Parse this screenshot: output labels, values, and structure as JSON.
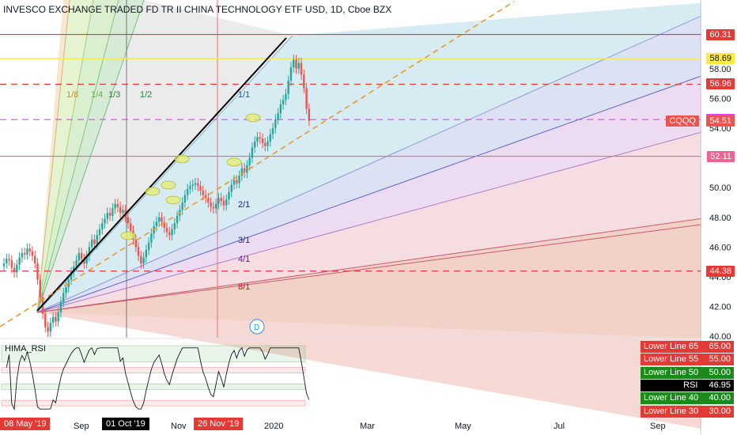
{
  "title": "INVESCO EXCHANGE TRADED FD TR II CHINA TECHNOLOGY ETF USD, 1D, Cboe BZX",
  "colors": {
    "up": "#26a69a",
    "down": "#ef5350",
    "hline": "#e53935",
    "yellow": "#ffeb3b",
    "magenta": "#e040fb",
    "pink": "#f06292",
    "trend": "#000000",
    "dashed_trend": "#e69a2e"
  },
  "chart_data": {
    "type": "candlestick",
    "title": "INVESCO EXCHANGE TRADED FD TR II CHINA TECHNOLOGY ETF USD, 1D, Cboe BZX",
    "symbol": "CQQQ",
    "last_price": 54.51,
    "y_range": [
      39.0,
      61.0
    ],
    "y_ticks": [
      40.0,
      42.0,
      44.0,
      46.0,
      48.0,
      50.0,
      52.0,
      54.0,
      56.0,
      58.0
    ],
    "x_ticks": [
      "Sep",
      "Nov",
      "2020",
      "Mar",
      "May",
      "Jul",
      "Sep"
    ],
    "highlight_dates": [
      "08 May '19",
      "01 Oct '19",
      "26 Nov '19"
    ],
    "price_tags": [
      {
        "value": "60.31",
        "style": "red"
      },
      {
        "value": "58.69",
        "style": "yellow"
      },
      {
        "value": "56.96",
        "style": "red"
      },
      {
        "value": "54.58",
        "style": "magenta"
      },
      {
        "value": "54.51",
        "style": "last",
        "symbol": "CQQQ"
      },
      {
        "value": "52.11",
        "style": "pink"
      },
      {
        "value": "44.38",
        "style": "red"
      }
    ],
    "horizontal_levels": [
      {
        "price": 60.31,
        "style": "solid-red"
      },
      {
        "price": 58.69,
        "style": "solid-yellow"
      },
      {
        "price": 56.96,
        "style": "dashed-red"
      },
      {
        "price": 54.58,
        "style": "dashed-magenta"
      },
      {
        "price": 52.11,
        "style": "solid-pink"
      },
      {
        "price": 44.38,
        "style": "dashed-red"
      }
    ],
    "gann_fan_labels": [
      "1/8",
      "1/4",
      "1/3",
      "1/2",
      "1/1",
      "2/1",
      "3/1",
      "4/1",
      "8/1"
    ],
    "closes": [
      44.9,
      45.2,
      45.1,
      44.6,
      44.3,
      44.8,
      45.3,
      45.6,
      45.5,
      45.9,
      45.7,
      45.4,
      44.9,
      43.8,
      42.6,
      41.5,
      40.6,
      40.3,
      40.9,
      41.3,
      41.0,
      41.6,
      42.3,
      42.9,
      43.3,
      43.8,
      44.3,
      44.7,
      45.1,
      45.6,
      45.2,
      44.9,
      45.4,
      46.0,
      46.5,
      46.2,
      46.8,
      47.2,
      47.6,
      47.9,
      48.3,
      48.1,
      48.6,
      48.9,
      48.7,
      48.3,
      48.5,
      48.0,
      47.6,
      47.1,
      46.5,
      46.0,
      45.4,
      44.9,
      45.3,
      45.8,
      46.3,
      46.9,
      47.4,
      47.7,
      48.0,
      47.7,
      47.3,
      47.0,
      46.8,
      47.2,
      47.6,
      48.1,
      48.5,
      49.0,
      49.5,
      49.9,
      50.1,
      50.2,
      50.3,
      50.1,
      49.8,
      49.5,
      49.3,
      49.0,
      48.7,
      48.6,
      48.9,
      49.3,
      49.1,
      48.8,
      49.2,
      49.7,
      50.2,
      50.5,
      50.3,
      50.8,
      51.3,
      51.0,
      51.5,
      52.0,
      52.7,
      53.1,
      53.4,
      53.3,
      53.0,
      52.8,
      53.1,
      53.6,
      54.0,
      54.6,
      55.0,
      55.6,
      55.9,
      56.3,
      57.2,
      58.1,
      58.6,
      58.0,
      58.4,
      57.6,
      56.7,
      55.3,
      54.5
    ],
    "rsi": {
      "title": "HIMA_RSI",
      "value": "46.95",
      "levels": [
        {
          "label": "Lower Line 65",
          "value": "65.00",
          "style": "red"
        },
        {
          "label": "Lower Line 55",
          "value": "55.00",
          "style": "red"
        },
        {
          "label": "Lower Line 50",
          "value": "50.00",
          "style": "green"
        },
        {
          "label": "RSI",
          "value": "46.95",
          "style": "black"
        },
        {
          "label": "Lower Line 40",
          "value": "40.00",
          "style": "green"
        },
        {
          "label": "Lower Line 30",
          "value": "30.00",
          "style": "red"
        }
      ]
    }
  }
}
